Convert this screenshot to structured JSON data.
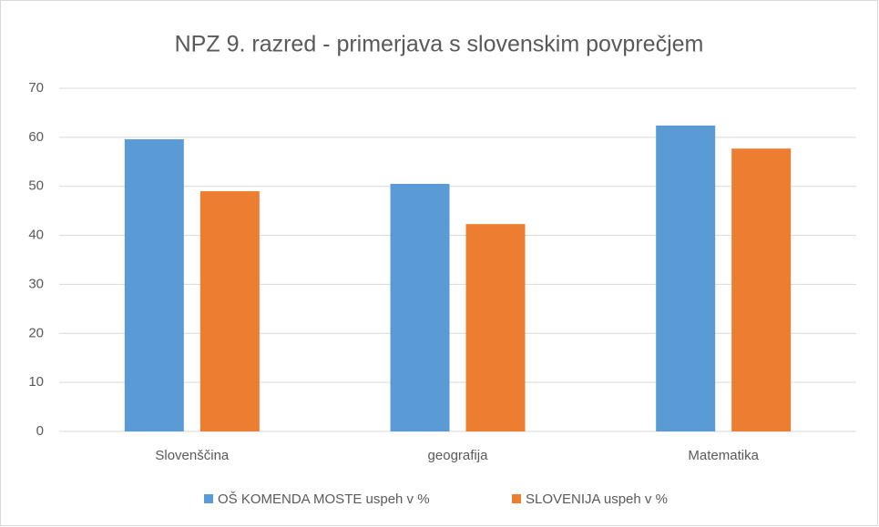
{
  "chart_data": {
    "type": "bar",
    "title": "NPZ 9. razred - primerjava s slovenskim povprečjem",
    "categories": [
      "Slovenščina",
      "geografija",
      "Matematika"
    ],
    "series": [
      {
        "name": "OŠ KOMENDA MOSTE uspeh v %",
        "color": "#5b9bd5",
        "values": [
          59.6,
          50.5,
          62.4
        ]
      },
      {
        "name": "SLOVENIJA uspeh v %",
        "color": "#ed7d31",
        "values": [
          49.0,
          42.3,
          57.7
        ]
      }
    ],
    "ylim": [
      0,
      70
    ],
    "yticks": [
      0,
      10,
      20,
      30,
      40,
      50,
      60,
      70
    ],
    "grid": true,
    "legend": "bottom"
  }
}
